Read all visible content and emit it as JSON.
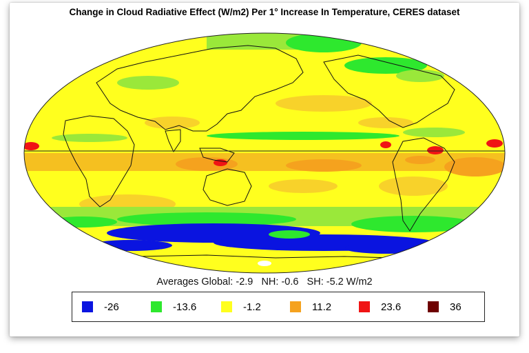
{
  "title": "Change in Cloud Radiative Effect (W/m2) Per 1° Increase In Temperature, CERES dataset",
  "averages": {
    "prefix": "Averages",
    "global": "Global: -2.9",
    "nh": "NH: -0.6",
    "sh": "SH: -5.2 W/m2"
  },
  "legend": [
    {
      "label": "-26",
      "color": "#0a14e0"
    },
    {
      "label": "-13.6",
      "color": "#2ee82e"
    },
    {
      "label": "-1.2",
      "color": "#ffff1e"
    },
    {
      "label": "11.2",
      "color": "#f5a21e"
    },
    {
      "label": "23.6",
      "color": "#f01414"
    },
    {
      "label": "36",
      "color": "#6e0000"
    }
  ],
  "projection": "Mollweide",
  "colors": {
    "blue": "#0a14e0",
    "green": "#2ee82e",
    "lightgreen": "#9ae83a",
    "yellow": "#ffff1e",
    "lightorange": "#f8d22a",
    "orange": "#f5a21e",
    "red": "#f01414",
    "darkred": "#6e0000"
  }
}
